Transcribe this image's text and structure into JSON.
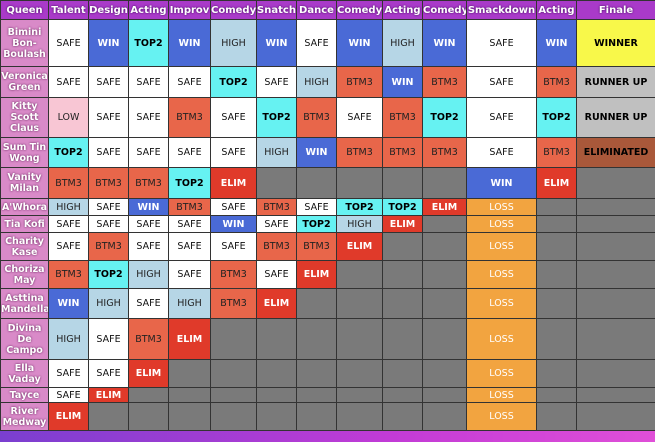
{
  "table": {
    "headers": [
      "Queen",
      "Talent",
      "Design",
      "Acting",
      "Improv",
      "Comedy",
      "Snatch",
      "Dance",
      "Comedy",
      "Acting",
      "Comedy",
      "Smackdown",
      "Acting",
      "Finale"
    ],
    "rows": [
      {
        "name": "Bimini Bon-Boulash",
        "cells": [
          "SAFE",
          "WIN",
          "TOP2",
          "WIN",
          "HIGH",
          "WIN",
          "SAFE",
          "WIN",
          "HIGH",
          "WIN",
          "SAFE",
          "WIN",
          "WINNER"
        ]
      },
      {
        "name": "Veronica Green",
        "cells": [
          "SAFE",
          "SAFE",
          "SAFE",
          "SAFE",
          "TOP2",
          "SAFE",
          "HIGH",
          "BTM3",
          "WIN",
          "BTM3",
          "SAFE",
          "BTM3",
          "RUNNER UP"
        ]
      },
      {
        "name": "Kitty Scott Claus",
        "cells": [
          "LOW",
          "SAFE",
          "SAFE",
          "BTM3",
          "SAFE",
          "TOP2",
          "BTM3",
          "SAFE",
          "BTM3",
          "TOP2",
          "SAFE",
          "TOP2",
          "RUNNER UP"
        ]
      },
      {
        "name": "Sum Tin Wong",
        "cells": [
          "TOP2",
          "SAFE",
          "SAFE",
          "SAFE",
          "SAFE",
          "HIGH",
          "WIN",
          "BTM3",
          "BTM3",
          "BTM3",
          "SAFE",
          "BTM3",
          "ELIMINATED"
        ]
      },
      {
        "name": "Vanity Milan",
        "cells": [
          "BTM3",
          "BTM3",
          "BTM3",
          "TOP2",
          "ELIM",
          "",
          "",
          "",
          "",
          "",
          "WIN",
          "ELIM",
          ""
        ]
      },
      {
        "name": "A'Whora",
        "cells": [
          "HIGH",
          "SAFE",
          "WIN",
          "BTM3",
          "SAFE",
          "BTM3",
          "SAFE",
          "TOP2",
          "TOP2",
          "ELIM",
          "LOSS",
          "",
          ""
        ]
      },
      {
        "name": "Tia Kofi",
        "cells": [
          "SAFE",
          "SAFE",
          "SAFE",
          "SAFE",
          "WIN",
          "SAFE",
          "TOP2",
          "HIGH",
          "ELIM",
          "",
          "LOSS",
          "",
          ""
        ]
      },
      {
        "name": "Charity Kase",
        "cells": [
          "SAFE",
          "BTM3",
          "SAFE",
          "SAFE",
          "SAFE",
          "BTM3",
          "BTM3",
          "ELIM",
          "",
          "",
          "LOSS",
          "",
          ""
        ]
      },
      {
        "name": "Choriza May",
        "cells": [
          "BTM3",
          "TOP2",
          "HIGH",
          "SAFE",
          "BTM3",
          "SAFE",
          "ELIM",
          "",
          "",
          "",
          "LOSS",
          "",
          ""
        ]
      },
      {
        "name": "Asttina Mandella",
        "cells": [
          "WIN",
          "HIGH",
          "SAFE",
          "HIGH",
          "BTM3",
          "ELIM",
          "",
          "",
          "",
          "",
          "LOSS",
          "",
          ""
        ]
      },
      {
        "name": "Divina De Campo",
        "cells": [
          "HIGH",
          "SAFE",
          "BTM3",
          "ELIM",
          "",
          "",
          "",
          "",
          "",
          "",
          "LOSS",
          "",
          ""
        ]
      },
      {
        "name": "Ella Vaday",
        "cells": [
          "SAFE",
          "SAFE",
          "ELIM",
          "",
          "",
          "",
          "",
          "",
          "",
          "",
          "LOSS",
          "",
          ""
        ]
      },
      {
        "name": "Tayce",
        "cells": [
          "SAFE",
          "ELIM",
          "",
          "",
          "",
          "",
          "",
          "",
          "",
          "",
          "LOSS",
          "",
          ""
        ]
      },
      {
        "name": "River Medway",
        "cells": [
          "ELIM",
          "",
          "",
          "",
          "",
          "",
          "",
          "",
          "",
          "",
          "LOSS",
          "",
          ""
        ]
      }
    ]
  },
  "colors": {
    "header": "#a93ac9",
    "name": "#d98ac8",
    "safe": "#ffffff",
    "win": "#4a6ad6",
    "top2": "#66f2f2",
    "high": "#b6d6e6",
    "low": "#f8c6d4",
    "btm3": "#e8664a",
    "elim": "#e03a2a",
    "loss": "#f2a440",
    "blank": "#7a7a7a",
    "winner": "#f8f84a",
    "runner_up": "#c0c0c0",
    "eliminated": "#a9583a"
  }
}
